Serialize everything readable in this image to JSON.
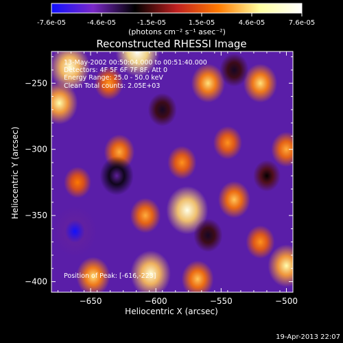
{
  "colorbar": {
    "tick_labels": [
      "-7.6e-05",
      "-4.6e-05",
      "-1.5e-05",
      "1.5e-05",
      "4.6e-05",
      "7.6e-05"
    ],
    "unit_label": "(photons cm⁻² s⁻¹ asec⁻²)",
    "range": [
      -7.6e-05,
      7.6e-05
    ],
    "colors": [
      "#1010ff",
      "#7a28c8",
      "#000000",
      "#c02020",
      "#ff7a00",
      "#ffffa0",
      "#ffffff"
    ]
  },
  "chart_data": {
    "type": "heatmap",
    "title": "Reconstructed RHESSI Image",
    "xlabel": "Heliocentric X (arcsec)",
    "ylabel": "Heliocentric Y (arcsec)",
    "xlim": [
      -680,
      -495
    ],
    "ylim": [
      -408,
      -226
    ],
    "xticks": [
      -650,
      -600,
      -550,
      -500
    ],
    "yticks": [
      -400,
      -350,
      -300,
      -250
    ],
    "annotations": [
      "13-May-2002 00:50:04.000 to 00:51:40.000",
      "Detectors: 4F 5F 6F 7F 8F, Att 0",
      "Energy Range: 25.0 - 50.0 keV",
      "Clean     Total counts: 2.05E+03"
    ],
    "peak_label": "Position of Peak: [-616,-223]",
    "sources": [
      {
        "x": -614,
        "y": -226,
        "value": 7.6e-05
      },
      {
        "x": -666,
        "y": -238,
        "value": 6.5e-05
      },
      {
        "x": -674,
        "y": -265,
        "value": 5.5e-05
      },
      {
        "x": -576,
        "y": -346,
        "value": 7e-05
      },
      {
        "x": -604,
        "y": -394,
        "value": 6.5e-05
      },
      {
        "x": -560,
        "y": -250,
        "value": 4.5e-05
      },
      {
        "x": -540,
        "y": -338,
        "value": 4e-05
      },
      {
        "x": -520,
        "y": -250,
        "value": 4.5e-05
      },
      {
        "x": -500,
        "y": -388,
        "value": 5.5e-05
      },
      {
        "x": -648,
        "y": -396,
        "value": 4.5e-05
      },
      {
        "x": -608,
        "y": -350,
        "value": 3.5e-05
      },
      {
        "x": -628,
        "y": -302,
        "value": 3.5e-05
      },
      {
        "x": -580,
        "y": -310,
        "value": 3e-05
      },
      {
        "x": -545,
        "y": -295,
        "value": 3e-05
      },
      {
        "x": -500,
        "y": -300,
        "value": 3.5e-05
      },
      {
        "x": -660,
        "y": -325,
        "value": 2.5e-05
      },
      {
        "x": -520,
        "y": -370,
        "value": 3e-05
      },
      {
        "x": -568,
        "y": -398,
        "value": 4e-05
      },
      {
        "x": -636,
        "y": -250,
        "value": 3e-05
      },
      {
        "x": -595,
        "y": -270,
        "value": -3e-05
      },
      {
        "x": -662,
        "y": -362,
        "value": -7.6e-05
      },
      {
        "x": -630,
        "y": -320,
        "value": -4.5e-05
      },
      {
        "x": -560,
        "y": -365,
        "value": -3e-05
      },
      {
        "x": -540,
        "y": -240,
        "value": -3e-05
      },
      {
        "x": -515,
        "y": -320,
        "value": -2.5e-05
      }
    ]
  },
  "footer": {
    "timestamp": "19-Apr-2013 22:07"
  }
}
